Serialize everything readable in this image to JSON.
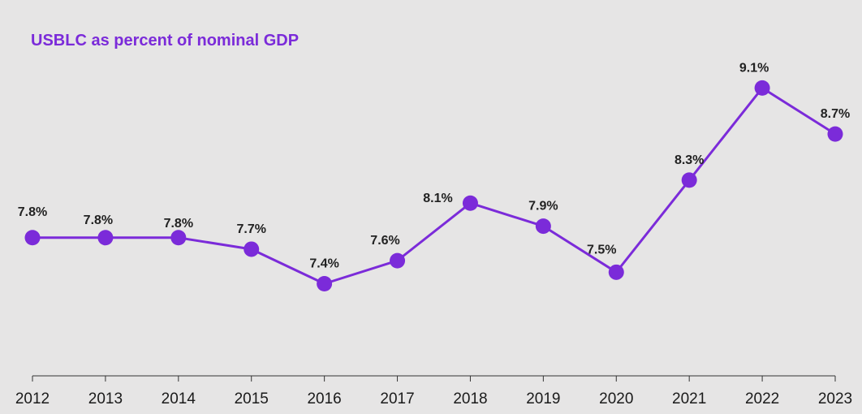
{
  "chart_data": {
    "type": "line",
    "title": "USBLC as percent of nominal GDP",
    "categories": [
      "2012",
      "2013",
      "2014",
      "2015",
      "2016",
      "2017",
      "2018",
      "2019",
      "2020",
      "2021",
      "2022",
      "2023"
    ],
    "series": [
      {
        "values": [
          7.8,
          7.8,
          7.8,
          7.7,
          7.4,
          7.6,
          8.1,
          7.9,
          7.5,
          8.3,
          9.1,
          8.7
        ]
      }
    ],
    "data_labels": [
      "7.8%",
      "7.8%",
      "7.8%",
      "7.7%",
      "7.4%",
      "7.6%",
      "8.1%",
      "7.9%",
      "7.5%",
      "8.3%",
      "9.1%",
      "8.7%"
    ],
    "xlabel": "",
    "ylabel": "",
    "ylim": [
      6.6,
      9.3
    ],
    "grid": false,
    "colors": {
      "line": "#7b2bd9",
      "title": "#7b2bd9",
      "background": "#e6e5e5",
      "axis": "#333333"
    }
  }
}
